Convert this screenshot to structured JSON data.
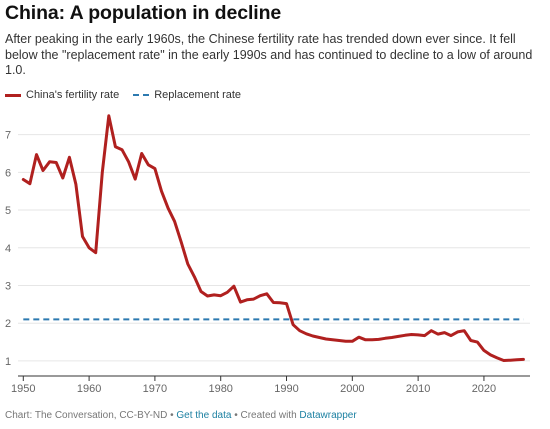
{
  "title": "China: A population in decline",
  "subtitle": "After peaking in the early 1960s, the Chinese fertility rate has trended down ever since. It fell below the \"replacement rate\" in the early 1990s and has continued to decline to a low of around 1.0.",
  "footer": {
    "source": "Chart: The Conversation, CC-BY-ND",
    "separator": "•",
    "get_data_link": "Get the data",
    "created_with_text": "Created with",
    "datawrapper_link": "Datawrapper"
  },
  "chart_data": {
    "type": "line",
    "title": "China: A population in decline",
    "xlabel": "",
    "ylabel": "",
    "xlim": [
      1949.5,
      2027
    ],
    "ylim": [
      0.6,
      7.6
    ],
    "x_ticks": [
      1950,
      1960,
      1970,
      1980,
      1990,
      2000,
      2010,
      2020
    ],
    "y_ticks": [
      1,
      2,
      3,
      4,
      5,
      6,
      7
    ],
    "grid": "horizontal",
    "legend_position": "top-left",
    "series": [
      {
        "name": "China's fertility rate",
        "color": "#b0201f",
        "style": "solid",
        "points": [
          [
            1950,
            5.81
          ],
          [
            1951,
            5.7
          ],
          [
            1952,
            6.47
          ],
          [
            1953,
            6.05
          ],
          [
            1954,
            6.28
          ],
          [
            1955,
            6.26
          ],
          [
            1956,
            5.85
          ],
          [
            1957,
            6.4
          ],
          [
            1958,
            5.68
          ],
          [
            1959,
            4.3
          ],
          [
            1960,
            4.0
          ],
          [
            1961,
            3.87
          ],
          [
            1962,
            6.0
          ],
          [
            1963,
            7.5
          ],
          [
            1964,
            6.68
          ],
          [
            1965,
            6.6
          ],
          [
            1966,
            6.28
          ],
          [
            1967,
            5.82
          ],
          [
            1968,
            6.5
          ],
          [
            1969,
            6.2
          ],
          [
            1970,
            6.1
          ],
          [
            1971,
            5.5
          ],
          [
            1972,
            5.05
          ],
          [
            1973,
            4.7
          ],
          [
            1974,
            4.15
          ],
          [
            1975,
            3.57
          ],
          [
            1976,
            3.23
          ],
          [
            1977,
            2.84
          ],
          [
            1978,
            2.72
          ],
          [
            1979,
            2.75
          ],
          [
            1980,
            2.73
          ],
          [
            1981,
            2.82
          ],
          [
            1982,
            2.98
          ],
          [
            1983,
            2.56
          ],
          [
            1984,
            2.62
          ],
          [
            1985,
            2.64
          ],
          [
            1986,
            2.73
          ],
          [
            1987,
            2.78
          ],
          [
            1988,
            2.55
          ],
          [
            1989,
            2.54
          ],
          [
            1990,
            2.52
          ],
          [
            1991,
            1.96
          ],
          [
            1992,
            1.8
          ],
          [
            1993,
            1.72
          ],
          [
            1994,
            1.66
          ],
          [
            1995,
            1.62
          ],
          [
            1996,
            1.58
          ],
          [
            1997,
            1.56
          ],
          [
            1998,
            1.54
          ],
          [
            1999,
            1.52
          ],
          [
            2000,
            1.52
          ],
          [
            2001,
            1.63
          ],
          [
            2002,
            1.56
          ],
          [
            2003,
            1.56
          ],
          [
            2004,
            1.57
          ],
          [
            2005,
            1.6
          ],
          [
            2006,
            1.62
          ],
          [
            2007,
            1.65
          ],
          [
            2008,
            1.68
          ],
          [
            2009,
            1.7
          ],
          [
            2010,
            1.69
          ],
          [
            2011,
            1.67
          ],
          [
            2012,
            1.8
          ],
          [
            2013,
            1.71
          ],
          [
            2014,
            1.75
          ],
          [
            2015,
            1.67
          ],
          [
            2016,
            1.77
          ],
          [
            2017,
            1.8
          ],
          [
            2018,
            1.54
          ],
          [
            2019,
            1.5
          ],
          [
            2020,
            1.28
          ],
          [
            2021,
            1.16
          ],
          [
            2022,
            1.08
          ],
          [
            2023,
            1.01
          ],
          [
            2024,
            1.02
          ],
          [
            2025,
            1.03
          ],
          [
            2026,
            1.04
          ]
        ]
      },
      {
        "name": "Replacement rate",
        "color": "#2d7ab0",
        "style": "dashed",
        "points": [
          [
            1950,
            2.1
          ],
          [
            2026,
            2.1
          ]
        ]
      }
    ]
  }
}
